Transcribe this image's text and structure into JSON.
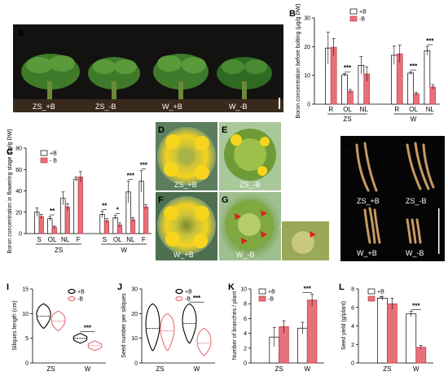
{
  "panels": {
    "A": {
      "label": "A",
      "captions": [
        "ZS_+B",
        "ZS_-B",
        "W_+B",
        "W_-B"
      ]
    },
    "D": {
      "label": "D",
      "caption": "ZS_+B"
    },
    "E": {
      "label": "E",
      "caption": "ZS_-B"
    },
    "F": {
      "label": "F",
      "caption": "W_+B"
    },
    "G": {
      "label": "G",
      "caption": "W_-B"
    },
    "H": {
      "label": "H",
      "captions": [
        "ZS_+B",
        "ZS_-B",
        "W_+B",
        "W_-B"
      ]
    }
  },
  "colors": {
    "plusB": "#ffffff",
    "minusB": "#e8707a",
    "minusB_stroke": "#c23a45",
    "photo_bg": "#141210"
  },
  "chart_data": [
    {
      "id": "B",
      "label": "B",
      "type": "bar",
      "ylabel": "Boron concentration before bolting (μg/g DW)",
      "ylim": [
        0,
        30
      ],
      "yticks": [
        0,
        10,
        20,
        30
      ],
      "legend": [
        "+B",
        "-B"
      ],
      "groups": [
        "ZS",
        "W"
      ],
      "categories": [
        "R",
        "OL",
        "NL",
        "R",
        "OL",
        "NL"
      ],
      "series": [
        {
          "name": "+B",
          "values": [
            19.5,
            10.2,
            13.5,
            17.0,
            10.8,
            18.6
          ],
          "err": [
            5.5,
            0.5,
            3.0,
            3.2,
            0.5,
            1.5
          ]
        },
        {
          "name": "-B",
          "values": [
            19.8,
            4.5,
            10.5,
            17.5,
            3.6,
            6.0
          ],
          "err": [
            3.0,
            0.6,
            2.5,
            3.0,
            0.5,
            0.8
          ]
        }
      ],
      "sig": [
        "",
        "***",
        "",
        "",
        "***",
        "***"
      ]
    },
    {
      "id": "C",
      "label": "C",
      "type": "bar",
      "ylabel": "Boron concentration in flowering stage (μg/g DW)",
      "ylim": [
        0,
        80
      ],
      "yticks": [
        0,
        20,
        40,
        60,
        80
      ],
      "legend": [
        "+B",
        "- B"
      ],
      "groups": [
        "ZS",
        "W"
      ],
      "categories": [
        "S",
        "OL",
        "NL",
        "F",
        "S",
        "OL",
        "NL",
        "F"
      ],
      "series": [
        {
          "name": "+B",
          "values": [
            20,
            14,
            33,
            51,
            18,
            15,
            39,
            49
          ],
          "err": [
            4,
            2,
            6,
            2,
            3,
            2,
            10,
            10
          ]
        },
        {
          "name": "- B",
          "values": [
            16,
            6,
            25,
            53,
            12,
            8,
            13,
            25
          ],
          "err": [
            2,
            1,
            3,
            5,
            2,
            2,
            2,
            2
          ]
        }
      ],
      "sig": [
        "",
        "**",
        "",
        "",
        "**",
        "*",
        "***",
        "***"
      ]
    },
    {
      "id": "I",
      "label": "I",
      "type": "violin",
      "ylabel": "Siliques length (cm)",
      "ylim": [
        0,
        15
      ],
      "yticks": [
        0,
        5,
        10,
        15
      ],
      "legend": [
        "+B",
        "-B"
      ],
      "categories": [
        "ZS",
        "W"
      ],
      "series": [
        {
          "name": "+B",
          "median": [
            9.5,
            5.0
          ],
          "min": [
            7.0,
            4.0
          ],
          "max": [
            12.0,
            6.0
          ]
        },
        {
          "name": "-B",
          "median": [
            8.5,
            3.5
          ],
          "min": [
            6.5,
            2.5
          ],
          "max": [
            10.5,
            4.5
          ]
        }
      ],
      "sig": [
        "",
        "***"
      ]
    },
    {
      "id": "J",
      "label": "J",
      "type": "violin",
      "ylabel": "Seed number per siliques",
      "ylim": [
        0,
        30
      ],
      "yticks": [
        0,
        10,
        20,
        30
      ],
      "legend": [
        "+B",
        "-B"
      ],
      "categories": [
        "ZS",
        "W"
      ],
      "series": [
        {
          "name": "+B",
          "median": [
            14,
            16
          ],
          "min": [
            5,
            8
          ],
          "max": [
            24,
            24
          ]
        },
        {
          "name": "-B",
          "median": [
            13,
            8
          ],
          "min": [
            5,
            3
          ],
          "max": [
            20,
            14
          ]
        }
      ],
      "sig": [
        "",
        "***"
      ]
    },
    {
      "id": "K",
      "label": "K",
      "type": "bar",
      "ylabel": "Number of branches / plant",
      "ylim": [
        0,
        10
      ],
      "yticks": [
        0,
        2,
        4,
        6,
        8,
        10
      ],
      "legend": [
        "+B",
        "-B"
      ],
      "categories": [
        "ZS",
        "W"
      ],
      "series": [
        {
          "name": "+B",
          "values": [
            3.5,
            4.7
          ],
          "err": [
            1.3,
            0.8
          ]
        },
        {
          "name": "-B",
          "values": [
            4.9,
            8.5
          ],
          "err": [
            0.8,
            0.8
          ]
        }
      ],
      "sig": [
        "",
        "***"
      ]
    },
    {
      "id": "L",
      "label": "L",
      "type": "bar",
      "ylabel": "Seed yield  (g/plant)",
      "ylim": [
        0,
        8
      ],
      "yticks": [
        0,
        2,
        4,
        6,
        8
      ],
      "legend": [
        "+B",
        "-B"
      ],
      "categories": [
        "ZS",
        "W"
      ],
      "series": [
        {
          "name": "+B",
          "values": [
            7.0,
            5.3
          ],
          "err": [
            0.2,
            0.3
          ]
        },
        {
          "name": "-B",
          "values": [
            6.4,
            1.7
          ],
          "err": [
            0.6,
            0.2
          ]
        }
      ],
      "sig": [
        "",
        "***"
      ]
    }
  ]
}
